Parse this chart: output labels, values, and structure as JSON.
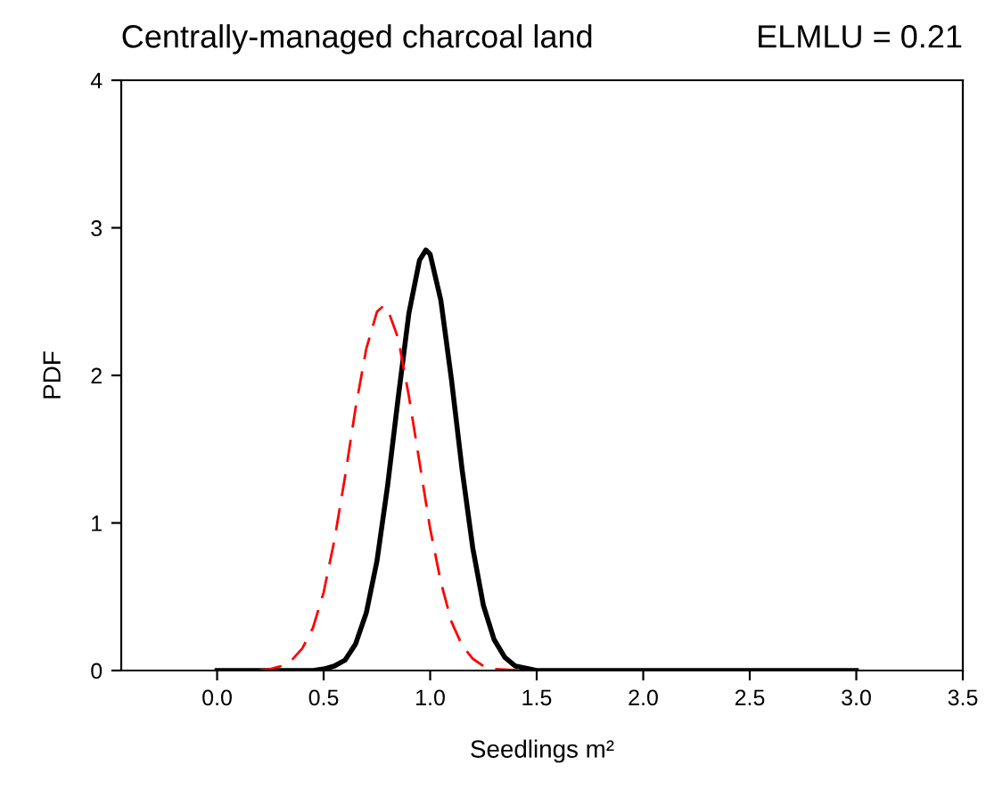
{
  "chart_data": {
    "type": "line",
    "title": "Centrally-managed charcoal land",
    "annotations": [
      "ELMLU = 0.21"
    ],
    "xlabel": "Seedlings m²",
    "ylabel": "PDF",
    "xlim": [
      -0.45,
      3.5
    ],
    "xticks": [
      {
        "value": 0,
        "label": "0.0"
      },
      {
        "value": 0.5,
        "label": "0.5"
      },
      {
        "value": 1,
        "label": "1.0"
      },
      {
        "value": 1.5,
        "label": "1.5"
      },
      {
        "value": 2,
        "label": "2.0"
      },
      {
        "value": 2.5,
        "label": "2.5"
      },
      {
        "value": 3,
        "label": "3.0"
      },
      {
        "value": 3.5,
        "label": "3.5"
      }
    ],
    "ylim": [
      0,
      4
    ],
    "yticks": [
      0,
      1,
      2,
      3,
      4
    ],
    "grid": false,
    "marker": "none",
    "series": [
      {
        "color": "#000000",
        "line_style": "solid",
        "x": [
          0,
          0.45,
          0.5,
          0.55,
          0.6,
          0.65,
          0.7,
          0.75,
          0.8,
          0.85,
          0.9,
          0.95,
          0.98,
          1.0,
          1.05,
          1.1,
          1.15,
          1.2,
          1.25,
          1.3,
          1.35,
          1.4,
          1.5,
          3.0
        ],
        "values": [
          0,
          0,
          0.01,
          0.03,
          0.07,
          0.18,
          0.39,
          0.74,
          1.25,
          1.85,
          2.42,
          2.78,
          2.85,
          2.82,
          2.51,
          1.97,
          1.36,
          0.83,
          0.44,
          0.21,
          0.09,
          0.03,
          0,
          0
        ]
      },
      {
        "color": "#ff0000",
        "line_style": "dashed",
        "x": [
          0.2,
          0.25,
          0.3,
          0.35,
          0.4,
          0.45,
          0.5,
          0.55,
          0.6,
          0.65,
          0.7,
          0.75,
          0.78,
          0.8,
          0.85,
          0.9,
          0.95,
          1.0,
          1.05,
          1.1,
          1.15,
          1.2,
          1.25,
          1.3,
          1.45
        ],
        "values": [
          0,
          0.01,
          0.03,
          0.07,
          0.15,
          0.29,
          0.53,
          0.88,
          1.31,
          1.78,
          2.18,
          2.43,
          2.47,
          2.45,
          2.25,
          1.86,
          1.41,
          0.96,
          0.6,
          0.33,
          0.17,
          0.08,
          0.03,
          0.01,
          0
        ]
      }
    ]
  }
}
